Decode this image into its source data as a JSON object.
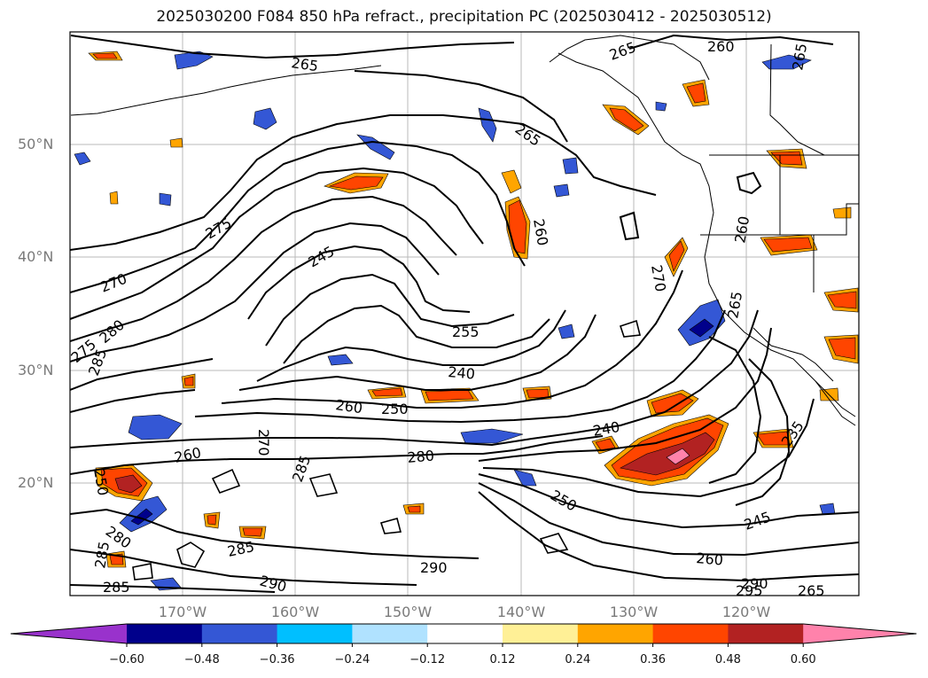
{
  "title": "2025030200 F084 850 hPa refract., precipitation PC (2025030412 - 2025030512)",
  "map": {
    "lat_ticks": [
      "50°N",
      "40°N",
      "30°N",
      "20°N"
    ],
    "lon_ticks": [
      "170°W",
      "160°W",
      "150°W",
      "140°W",
      "130°W",
      "120°W"
    ],
    "contour_labels": [
      "265",
      "260",
      "265",
      "265",
      "265",
      "275",
      "260",
      "270",
      "245",
      "270",
      "280",
      "275",
      "285",
      "260",
      "255",
      "240",
      "265",
      "260",
      "250",
      "240",
      "270",
      "260",
      "280",
      "250",
      "235",
      "280",
      "285",
      "285",
      "245",
      "260",
      "290",
      "290",
      "285",
      "290",
      "295",
      "285",
      "250",
      "265"
    ]
  },
  "colorbar": {
    "colors": [
      "#9932cc",
      "#00008b",
      "#3457d5",
      "#00bfff",
      "#b0e2ff",
      "#ffffff",
      "#fff096",
      "#ffa500",
      "#ff4500",
      "#b22222",
      "#ff82ab"
    ],
    "tick_labels": [
      "−0.60",
      "−0.48",
      "−0.36",
      "−0.24",
      "−0.12",
      "0.12",
      "0.24",
      "0.36",
      "0.48",
      "0.60"
    ]
  }
}
